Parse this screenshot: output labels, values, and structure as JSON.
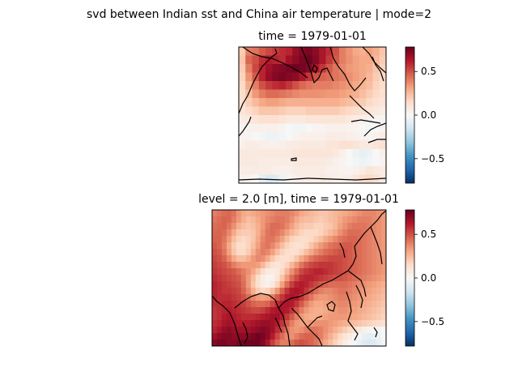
{
  "figure": {
    "suptitle": "svd between Indian sst and China air temperature | mode=2"
  },
  "chart_data": [
    {
      "type": "heatmap",
      "title": "time = 1979-01-01",
      "region": "Indian Ocean",
      "variable": "sst",
      "colormap": "RdBu_r",
      "colorbar": {
        "ticks": [
          0.5,
          0.0,
          -0.5
        ],
        "tick_labels": [
          "0.5",
          "0.0",
          "−0.5"
        ],
        "range": [
          -0.78,
          0.78
        ]
      },
      "grid": false,
      "values": [
        [
          0.2,
          0.4,
          0.42,
          0.48,
          0.52,
          0.55,
          0.58,
          0.6,
          0.68,
          0.72,
          0.74,
          0.7,
          0.64,
          0.58,
          0.5,
          0.4,
          0.35,
          0.3,
          0.28,
          0.32,
          0.28,
          0.22
        ],
        [
          0.22,
          0.45,
          0.5,
          0.58,
          0.62,
          0.6,
          0.58,
          0.66,
          0.7,
          0.74,
          0.76,
          0.72,
          0.64,
          0.55,
          0.48,
          0.4,
          0.36,
          0.32,
          0.3,
          0.3,
          0.26,
          0.2
        ],
        [
          0.2,
          0.4,
          0.52,
          0.6,
          0.66,
          0.7,
          0.72,
          0.74,
          0.76,
          0.75,
          0.72,
          0.64,
          0.56,
          0.48,
          0.42,
          0.38,
          0.34,
          0.32,
          0.3,
          0.28,
          0.22,
          0.18
        ],
        [
          0.18,
          0.35,
          0.48,
          0.6,
          0.68,
          0.72,
          0.74,
          0.72,
          0.7,
          0.64,
          0.56,
          0.5,
          0.46,
          0.44,
          0.42,
          0.4,
          0.36,
          0.33,
          0.3,
          0.26,
          0.2,
          0.16
        ],
        [
          0.16,
          0.3,
          0.4,
          0.5,
          0.55,
          0.58,
          0.6,
          0.56,
          0.5,
          0.45,
          0.42,
          0.4,
          0.4,
          0.4,
          0.38,
          0.36,
          0.34,
          0.3,
          0.27,
          0.24,
          0.18,
          0.14
        ],
        [
          0.14,
          0.24,
          0.34,
          0.4,
          0.44,
          0.44,
          0.42,
          0.4,
          0.38,
          0.36,
          0.36,
          0.36,
          0.35,
          0.34,
          0.34,
          0.32,
          0.3,
          0.28,
          0.24,
          0.2,
          0.16,
          0.12
        ],
        [
          0.12,
          0.2,
          0.25,
          0.3,
          0.32,
          0.32,
          0.3,
          0.28,
          0.28,
          0.28,
          0.28,
          0.28,
          0.28,
          0.28,
          0.28,
          0.26,
          0.24,
          0.22,
          0.2,
          0.16,
          0.12,
          0.1
        ],
        [
          0.1,
          0.14,
          0.18,
          0.22,
          0.22,
          0.22,
          0.2,
          0.18,
          0.18,
          0.18,
          0.2,
          0.2,
          0.2,
          0.2,
          0.2,
          0.18,
          0.16,
          0.14,
          0.12,
          0.1,
          0.08,
          0.06
        ],
        [
          0.06,
          0.08,
          0.1,
          0.12,
          0.12,
          0.12,
          0.1,
          0.08,
          0.08,
          0.08,
          0.1,
          0.1,
          0.1,
          0.1,
          0.1,
          0.1,
          0.08,
          0.06,
          0.04,
          0.03,
          0.02,
          0.02
        ],
        [
          0.02,
          0.03,
          0.04,
          0.04,
          0.04,
          0.04,
          0.02,
          0.0,
          -0.02,
          -0.02,
          0.0,
          0.02,
          0.02,
          0.04,
          0.04,
          0.04,
          0.03,
          0.02,
          0.0,
          -0.02,
          0.0,
          0.02
        ],
        [
          0.02,
          0.02,
          0.0,
          -0.02,
          -0.04,
          -0.04,
          -0.02,
          0.0,
          0.02,
          0.04,
          0.04,
          0.04,
          0.04,
          0.06,
          0.06,
          0.06,
          0.05,
          0.04,
          0.02,
          0.02,
          0.04,
          0.06
        ],
        [
          0.04,
          0.06,
          0.06,
          0.05,
          0.04,
          0.04,
          0.05,
          0.06,
          0.07,
          0.08,
          0.08,
          0.08,
          0.08,
          0.1,
          0.1,
          0.12,
          0.12,
          0.1,
          0.08,
          0.08,
          0.1,
          0.12
        ],
        [
          0.08,
          0.08,
          0.08,
          0.08,
          0.08,
          0.08,
          0.08,
          0.08,
          0.1,
          0.1,
          0.1,
          0.1,
          0.1,
          0.1,
          0.08,
          0.04,
          0.0,
          -0.04,
          -0.06,
          -0.04,
          0.0,
          0.04
        ],
        [
          0.08,
          0.08,
          0.08,
          0.06,
          0.06,
          0.06,
          0.06,
          0.06,
          0.08,
          0.08,
          0.08,
          0.08,
          0.08,
          0.06,
          0.04,
          0.02,
          0.0,
          -0.02,
          -0.04,
          -0.02,
          0.0,
          0.02
        ],
        [
          0.06,
          0.06,
          0.06,
          0.06,
          0.06,
          0.04,
          0.04,
          0.04,
          0.06,
          0.06,
          0.06,
          0.06,
          0.06,
          0.04,
          0.04,
          0.02,
          0.02,
          0.04,
          0.06,
          0.1,
          0.08,
          0.06
        ],
        [
          0.04,
          0.02,
          0.0,
          -0.08,
          -0.12,
          -0.1,
          -0.04,
          0.02,
          0.04,
          0.06,
          0.06,
          0.06,
          0.08,
          0.06,
          0.04,
          0.04,
          0.06,
          0.1,
          0.14,
          0.16,
          0.12,
          0.08
        ]
      ]
    },
    {
      "type": "heatmap",
      "title": "level = 2.0 [m], time = 1979-01-01",
      "region": "China",
      "variable": "air temperature",
      "colormap": "RdBu_r",
      "colorbar": {
        "ticks": [
          0.5,
          0.0,
          -0.5
        ],
        "tick_labels": [
          "0.5",
          "0.0",
          "−0.5"
        ],
        "range": [
          -0.78,
          0.78
        ]
      },
      "grid": false,
      "values": [
        [
          0.4,
          0.42,
          0.44,
          0.45,
          0.42,
          0.35,
          0.3,
          0.28,
          0.3,
          0.32,
          0.34,
          0.36,
          0.38,
          0.4,
          0.4,
          0.4,
          0.38,
          0.35,
          0.3,
          0.28,
          0.26,
          0.24,
          0.22,
          0.22,
          0.24,
          0.26,
          0.28,
          0.3,
          0.32,
          0.34,
          0.36,
          0.38,
          0.38,
          0.38,
          0.36,
          0.34
        ],
        [
          0.42,
          0.44,
          0.46,
          0.45,
          0.4,
          0.34,
          0.28,
          0.24,
          0.26,
          0.3,
          0.34,
          0.38,
          0.4,
          0.42,
          0.42,
          0.4,
          0.36,
          0.3,
          0.26,
          0.24,
          0.24,
          0.22,
          0.2,
          0.22,
          0.24,
          0.26,
          0.3,
          0.34,
          0.36,
          0.38,
          0.4,
          0.4,
          0.4,
          0.38,
          0.36,
          0.34
        ],
        [
          0.44,
          0.45,
          0.46,
          0.42,
          0.36,
          0.28,
          0.24,
          0.22,
          0.24,
          0.28,
          0.34,
          0.4,
          0.44,
          0.44,
          0.42,
          0.38,
          0.32,
          0.26,
          0.22,
          0.2,
          0.2,
          0.18,
          0.18,
          0.2,
          0.22,
          0.26,
          0.32,
          0.36,
          0.4,
          0.42,
          0.42,
          0.42,
          0.4,
          0.38,
          0.36,
          0.34
        ],
        [
          0.45,
          0.46,
          0.44,
          0.38,
          0.3,
          0.22,
          0.2,
          0.2,
          0.22,
          0.28,
          0.36,
          0.42,
          0.44,
          0.42,
          0.38,
          0.32,
          0.26,
          0.22,
          0.18,
          0.16,
          0.16,
          0.16,
          0.18,
          0.22,
          0.26,
          0.3,
          0.36,
          0.4,
          0.44,
          0.44,
          0.44,
          0.42,
          0.4,
          0.38,
          0.36,
          0.34
        ],
        [
          0.46,
          0.46,
          0.42,
          0.34,
          0.24,
          0.18,
          0.16,
          0.18,
          0.22,
          0.3,
          0.38,
          0.42,
          0.42,
          0.38,
          0.32,
          0.24,
          0.18,
          0.16,
          0.14,
          0.14,
          0.16,
          0.2,
          0.24,
          0.3,
          0.34,
          0.38,
          0.42,
          0.44,
          0.46,
          0.46,
          0.44,
          0.42,
          0.4,
          0.38,
          0.36,
          0.34
        ],
        [
          0.48,
          0.46,
          0.4,
          0.3,
          0.2,
          0.14,
          0.14,
          0.18,
          0.24,
          0.32,
          0.4,
          0.42,
          0.38,
          0.32,
          0.24,
          0.18,
          0.14,
          0.12,
          0.12,
          0.16,
          0.22,
          0.28,
          0.34,
          0.38,
          0.42,
          0.44,
          0.46,
          0.48,
          0.48,
          0.46,
          0.44,
          0.42,
          0.4,
          0.38,
          0.36,
          0.34
        ],
        [
          0.5,
          0.48,
          0.42,
          0.32,
          0.22,
          0.16,
          0.16,
          0.2,
          0.28,
          0.36,
          0.4,
          0.38,
          0.32,
          0.24,
          0.18,
          0.14,
          0.12,
          0.14,
          0.18,
          0.24,
          0.3,
          0.36,
          0.4,
          0.44,
          0.46,
          0.48,
          0.5,
          0.5,
          0.48,
          0.46,
          0.44,
          0.42,
          0.4,
          0.38,
          0.36,
          0.34
        ],
        [
          0.52,
          0.5,
          0.46,
          0.38,
          0.3,
          0.24,
          0.24,
          0.28,
          0.34,
          0.38,
          0.36,
          0.3,
          0.22,
          0.16,
          0.12,
          0.12,
          0.16,
          0.22,
          0.3,
          0.36,
          0.42,
          0.46,
          0.48,
          0.5,
          0.52,
          0.52,
          0.52,
          0.5,
          0.48,
          0.46,
          0.44,
          0.42,
          0.4,
          0.38,
          0.36,
          0.34
        ],
        [
          0.54,
          0.52,
          0.5,
          0.46,
          0.4,
          0.36,
          0.34,
          0.34,
          0.34,
          0.32,
          0.26,
          0.18,
          0.12,
          0.1,
          0.12,
          0.18,
          0.26,
          0.34,
          0.42,
          0.48,
          0.52,
          0.54,
          0.56,
          0.56,
          0.56,
          0.54,
          0.52,
          0.5,
          0.48,
          0.46,
          0.44,
          0.42,
          0.4,
          0.38,
          0.36,
          0.34
        ],
        [
          0.56,
          0.54,
          0.52,
          0.5,
          0.48,
          0.44,
          0.4,
          0.36,
          0.3,
          0.22,
          0.14,
          0.08,
          0.06,
          0.08,
          0.16,
          0.26,
          0.36,
          0.44,
          0.52,
          0.56,
          0.58,
          0.6,
          0.6,
          0.58,
          0.56,
          0.54,
          0.52,
          0.5,
          0.48,
          0.46,
          0.44,
          0.42,
          0.4,
          0.38,
          0.36,
          0.34
        ],
        [
          0.58,
          0.56,
          0.54,
          0.52,
          0.5,
          0.48,
          0.42,
          0.34,
          0.24,
          0.14,
          0.06,
          0.02,
          0.04,
          0.1,
          0.22,
          0.34,
          0.44,
          0.52,
          0.58,
          0.6,
          0.6,
          0.58,
          0.56,
          0.54,
          0.52,
          0.5,
          0.5,
          0.48,
          0.46,
          0.44,
          0.42,
          0.4,
          0.38,
          0.36,
          0.34,
          0.32
        ],
        [
          0.6,
          0.58,
          0.56,
          0.54,
          0.52,
          0.5,
          0.44,
          0.34,
          0.22,
          0.12,
          0.06,
          0.04,
          0.08,
          0.18,
          0.32,
          0.44,
          0.54,
          0.6,
          0.62,
          0.6,
          0.56,
          0.52,
          0.48,
          0.46,
          0.44,
          0.44,
          0.44,
          0.44,
          0.42,
          0.4,
          0.38,
          0.36,
          0.34,
          0.32,
          0.3,
          0.28
        ],
        [
          0.6,
          0.58,
          0.56,
          0.56,
          0.54,
          0.52,
          0.46,
          0.38,
          0.28,
          0.2,
          0.16,
          0.18,
          0.24,
          0.34,
          0.46,
          0.56,
          0.62,
          0.64,
          0.62,
          0.56,
          0.5,
          0.44,
          0.4,
          0.38,
          0.38,
          0.4,
          0.42,
          0.42,
          0.4,
          0.38,
          0.36,
          0.34,
          0.32,
          0.3,
          0.28,
          0.26
        ],
        [
          0.6,
          0.58,
          0.58,
          0.58,
          0.56,
          0.54,
          0.5,
          0.44,
          0.38,
          0.34,
          0.32,
          0.34,
          0.4,
          0.48,
          0.56,
          0.62,
          0.64,
          0.62,
          0.56,
          0.48,
          0.42,
          0.36,
          0.34,
          0.34,
          0.36,
          0.38,
          0.4,
          0.4,
          0.38,
          0.36,
          0.34,
          0.32,
          0.3,
          0.28,
          0.26,
          0.24
        ],
        [
          0.58,
          0.58,
          0.6,
          0.6,
          0.58,
          0.56,
          0.54,
          0.5,
          0.46,
          0.44,
          0.44,
          0.46,
          0.52,
          0.58,
          0.62,
          0.64,
          0.62,
          0.56,
          0.48,
          0.4,
          0.34,
          0.3,
          0.3,
          0.32,
          0.34,
          0.36,
          0.38,
          0.38,
          0.36,
          0.34,
          0.32,
          0.3,
          0.28,
          0.26,
          0.24,
          0.22
        ],
        [
          0.56,
          0.58,
          0.6,
          0.62,
          0.6,
          0.58,
          0.56,
          0.54,
          0.52,
          0.52,
          0.54,
          0.58,
          0.62,
          0.64,
          0.64,
          0.62,
          0.56,
          0.48,
          0.4,
          0.34,
          0.3,
          0.28,
          0.28,
          0.3,
          0.32,
          0.34,
          0.36,
          0.36,
          0.34,
          0.32,
          0.3,
          0.28,
          0.26,
          0.24,
          0.22,
          0.2
        ],
        [
          0.56,
          0.58,
          0.62,
          0.64,
          0.62,
          0.6,
          0.58,
          0.58,
          0.58,
          0.6,
          0.62,
          0.64,
          0.66,
          0.66,
          0.62,
          0.56,
          0.48,
          0.4,
          0.34,
          0.3,
          0.28,
          0.28,
          0.3,
          0.32,
          0.34,
          0.34,
          0.34,
          0.34,
          0.32,
          0.3,
          0.28,
          0.26,
          0.24,
          0.22,
          0.2,
          0.18
        ],
        [
          0.58,
          0.6,
          0.64,
          0.66,
          0.64,
          0.62,
          0.62,
          0.62,
          0.64,
          0.66,
          0.68,
          0.68,
          0.66,
          0.62,
          0.56,
          0.48,
          0.4,
          0.34,
          0.32,
          0.32,
          0.34,
          0.36,
          0.36,
          0.36,
          0.34,
          0.32,
          0.3,
          0.28,
          0.26,
          0.24,
          0.22,
          0.2,
          0.18,
          0.16,
          0.14,
          0.12
        ],
        [
          0.6,
          0.64,
          0.68,
          0.7,
          0.68,
          0.66,
          0.66,
          0.66,
          0.68,
          0.7,
          0.72,
          0.7,
          0.66,
          0.58,
          0.5,
          0.42,
          0.36,
          0.34,
          0.36,
          0.4,
          0.42,
          0.42,
          0.4,
          0.36,
          0.32,
          0.28,
          0.24,
          0.2,
          0.16,
          0.12,
          0.08,
          0.04,
          0.02,
          0.0,
          -0.02,
          0.0
        ],
        [
          0.66,
          0.7,
          0.72,
          0.72,
          0.7,
          0.7,
          0.7,
          0.72,
          0.74,
          0.76,
          0.74,
          0.7,
          0.62,
          0.52,
          0.44,
          0.38,
          0.36,
          0.4,
          0.44,
          0.46,
          0.46,
          0.44,
          0.4,
          0.34,
          0.28,
          0.22,
          0.16,
          0.1,
          0.06,
          0.02,
          -0.02,
          -0.06,
          -0.08,
          -0.06,
          -0.04,
          0.0
        ],
        [
          0.72,
          0.74,
          0.74,
          0.72,
          0.72,
          0.74,
          0.76,
          0.76,
          0.76,
          0.76,
          0.72,
          0.64,
          0.54,
          0.46,
          0.4,
          0.4,
          0.44,
          0.48,
          0.5,
          0.48,
          0.46,
          0.42,
          0.36,
          0.3,
          0.24,
          0.18,
          0.12,
          0.06,
          0.02,
          -0.02,
          -0.06,
          -0.1,
          -0.12,
          -0.1,
          -0.06,
          -0.02
        ]
      ]
    }
  ]
}
